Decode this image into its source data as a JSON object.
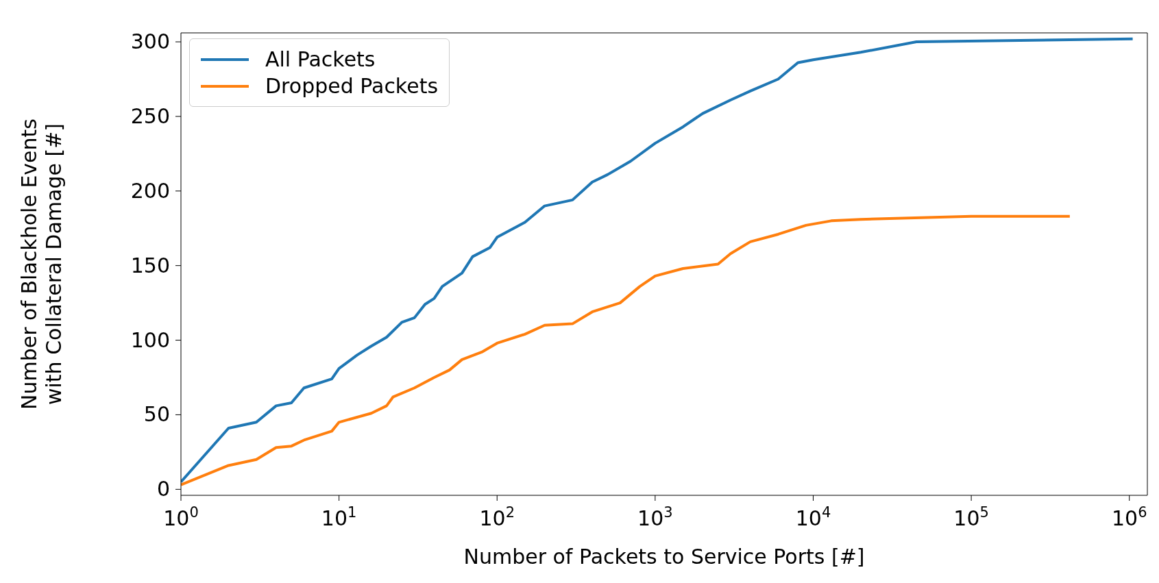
{
  "chart_data": {
    "type": "line",
    "xlabel": "Number of Packets to Service Ports [#]",
    "ylabel": "Number of Blackhole Events\nwith Collateral Damage [#]",
    "log": "x",
    "xlim": [
      1,
      1300000
    ],
    "ylim": [
      -4,
      306
    ],
    "xticks": [
      {
        "value": 1,
        "label": "10$^{0}$"
      },
      {
        "value": 10,
        "label": "10$^{1}$"
      },
      {
        "value": 100,
        "label": "10$^{2}$"
      },
      {
        "value": 1000,
        "label": "10$^{3}$"
      },
      {
        "value": 10000,
        "label": "10$^{4}$"
      },
      {
        "value": 100000,
        "label": "10$^{5}$"
      },
      {
        "value": 1000000,
        "label": "10$^{6}$"
      }
    ],
    "yticks": [
      0,
      50,
      100,
      150,
      200,
      250,
      300
    ],
    "legend": "top left",
    "marker": "none",
    "line_style": "solid",
    "series": [
      {
        "name": "All Packets",
        "color": "#1f77b4",
        "x": [
          1,
          2,
          3,
          4,
          5,
          6,
          9,
          10,
          13,
          16,
          20,
          25,
          30,
          35,
          40,
          45,
          60,
          70,
          90,
          100,
          150,
          200,
          300,
          400,
          500,
          700,
          1000,
          1500,
          2000,
          3000,
          4000,
          6000,
          8000,
          10000,
          20000,
          45000,
          1050000
        ],
        "values": [
          5,
          41,
          45,
          56,
          58,
          68,
          74,
          81,
          90,
          96,
          102,
          112,
          115,
          124,
          128,
          136,
          145,
          156,
          162,
          169,
          179,
          190,
          194,
          206,
          211,
          220,
          232,
          243,
          252,
          261,
          267,
          275,
          286,
          288,
          293,
          300,
          302
        ]
      },
      {
        "name": "Dropped Packets",
        "color": "#ff7f0e",
        "x": [
          1,
          2,
          3,
          4,
          5,
          6,
          9,
          10,
          16,
          20,
          22,
          30,
          40,
          50,
          60,
          80,
          100,
          150,
          200,
          300,
          400,
          600,
          800,
          1000,
          1500,
          2500,
          3000,
          4000,
          6000,
          9000,
          13000,
          20000,
          100000,
          420000
        ],
        "values": [
          3,
          16,
          20,
          28,
          29,
          33,
          39,
          45,
          51,
          56,
          62,
          68,
          75,
          80,
          87,
          92,
          98,
          104,
          110,
          111,
          119,
          125,
          136,
          143,
          148,
          151,
          158,
          166,
          171,
          177,
          180,
          181,
          183,
          183
        ]
      }
    ]
  }
}
